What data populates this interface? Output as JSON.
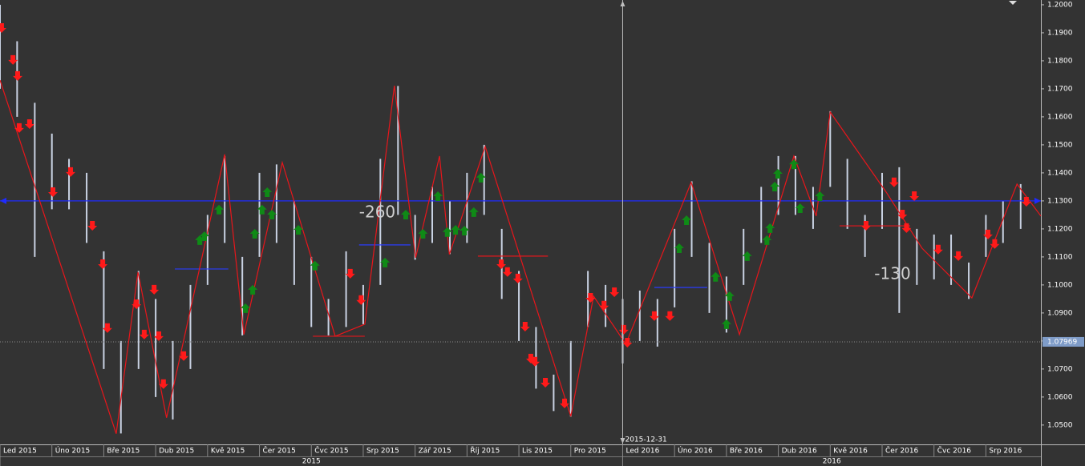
{
  "chart_data": {
    "type": "price",
    "xlim": [
      0,
      20.06
    ],
    "ylim": [
      1.0431,
      1.2017
    ],
    "xticks": [
      {
        "value": 0,
        "label": "Led 2015"
      },
      {
        "value": 1,
        "label": "Úno 2015"
      },
      {
        "value": 2,
        "label": "Bře 2015"
      },
      {
        "value": 3,
        "label": "Dub 2015"
      },
      {
        "value": 4,
        "label": "Kvě 2015"
      },
      {
        "value": 5,
        "label": "Čer 2015"
      },
      {
        "value": 6,
        "label": "Čvc 2015"
      },
      {
        "value": 7,
        "label": "Srp 2015"
      },
      {
        "value": 8,
        "label": "Zář 2015"
      },
      {
        "value": 9,
        "label": "Říj 2015"
      },
      {
        "value": 10,
        "label": "Lis 2015"
      },
      {
        "value": 11,
        "label": "Pro 2015"
      },
      {
        "value": 12,
        "label": "Led 2016"
      },
      {
        "value": 13,
        "label": "Úno 2016"
      },
      {
        "value": 14,
        "label": "Bře 2016"
      },
      {
        "value": 15,
        "label": "Dub 2016"
      },
      {
        "value": 16,
        "label": "Kvě 2016"
      },
      {
        "value": 17,
        "label": "Čer 2016"
      },
      {
        "value": 18,
        "label": "Čvc 2016"
      },
      {
        "value": 19,
        "label": "Srp 2016"
      }
    ],
    "year_ticks": [
      {
        "value": 0,
        "label": "2015"
      },
      {
        "value": 12,
        "label": "2016"
      }
    ],
    "yticks": [
      {
        "value": 1.05,
        "label": "1.0500"
      },
      {
        "value": 1.06,
        "label": "1.0600"
      },
      {
        "value": 1.07,
        "label": "1.0700"
      },
      {
        "value": 1.08,
        "label": "1.0800"
      },
      {
        "value": 1.09,
        "label": "1.0900"
      },
      {
        "value": 1.1,
        "label": "1.1000"
      },
      {
        "value": 1.11,
        "label": "1.1100"
      },
      {
        "value": 1.12,
        "label": "1.1200"
      },
      {
        "value": 1.13,
        "label": "1.1300"
      },
      {
        "value": 1.14,
        "label": "1.1400"
      },
      {
        "value": 1.15,
        "label": "1.1500"
      },
      {
        "value": 1.16,
        "label": "1.1600"
      },
      {
        "value": 1.17,
        "label": "1.1700"
      },
      {
        "value": 1.18,
        "label": "1.1800"
      },
      {
        "value": 1.19,
        "label": "1.1900"
      },
      {
        "value": 1.2,
        "label": "1.2000"
      }
    ],
    "bars": {
      "color": "#c9d2e3",
      "x": [
        0,
        0.33,
        0.67,
        1,
        1.33,
        1.67,
        2,
        2.33,
        2.67,
        3,
        3.33,
        3.67,
        4,
        4.33,
        4.67,
        5,
        5.33,
        5.67,
        6,
        6.33,
        6.67,
        7,
        7.33,
        7.67,
        8,
        8.33,
        8.67,
        9,
        9.33,
        9.67,
        10,
        10.33,
        10.67,
        11,
        11.33,
        11.67,
        12,
        12.33,
        12.67,
        13,
        13.33,
        13.67,
        14,
        14.33,
        14.67,
        15,
        15.33,
        15.67,
        16,
        16.33,
        16.67,
        17,
        17.33,
        17.67,
        18,
        18.33,
        18.67,
        19,
        19.33,
        19.67
      ],
      "high": [
        1.2,
        1.187,
        1.165,
        1.154,
        1.145,
        1.14,
        1.112,
        1.08,
        1.105,
        1.095,
        1.08,
        1.1,
        1.125,
        1.146,
        1.11,
        1.14,
        1.143,
        1.13,
        1.11,
        1.095,
        1.112,
        1.1,
        1.145,
        1.171,
        1.125,
        1.135,
        1.13,
        1.14,
        1.15,
        1.12,
        1.105,
        1.085,
        1.068,
        1.08,
        1.105,
        1.1,
        1.095,
        1.098,
        1.095,
        1.12,
        1.137,
        1.115,
        1.103,
        1.12,
        1.135,
        1.146,
        1.146,
        1.135,
        1.162,
        1.145,
        1.125,
        1.14,
        1.142,
        1.12,
        1.118,
        1.118,
        1.108,
        1.125,
        1.13,
        1.136
      ],
      "low": [
        1.17,
        1.16,
        1.11,
        1.127,
        1.127,
        1.115,
        1.07,
        1.047,
        1.07,
        1.06,
        1.052,
        1.07,
        1.1,
        1.115,
        1.082,
        1.11,
        1.115,
        1.1,
        1.085,
        1.082,
        1.085,
        1.086,
        1.1,
        1.125,
        1.109,
        1.115,
        1.111,
        1.115,
        1.125,
        1.095,
        1.08,
        1.063,
        1.055,
        1.053,
        1.085,
        1.085,
        1.072,
        1.08,
        1.078,
        1.092,
        1.11,
        1.09,
        1.083,
        1.1,
        1.115,
        1.125,
        1.125,
        1.12,
        1.135,
        1.12,
        1.11,
        1.12,
        1.09,
        1.1,
        1.102,
        1.1,
        1.095,
        1.11,
        1.115,
        1.12
      ]
    },
    "zigzag": {
      "color": "#e8161b",
      "x": [
        0,
        2.24,
        2.66,
        3.21,
        4.33,
        4.7,
        5.44,
        6.46,
        7.03,
        7.6,
        8.01,
        8.47,
        8.66,
        9.35,
        11.0,
        11.44,
        12.06,
        13.32,
        14.25,
        15.3,
        15.73,
        16.0,
        17.08,
        17.77,
        18.73,
        19.6,
        20.06
      ],
      "y": [
        1.1731,
        1.0469,
        1.1046,
        1.0526,
        1.1466,
        1.0823,
        1.1437,
        1.0817,
        1.086,
        1.1711,
        1.1097,
        1.146,
        1.1109,
        1.1494,
        1.0531,
        1.096,
        1.0789,
        1.1366,
        1.0823,
        1.146,
        1.1246,
        1.1617,
        1.1331,
        1.1131,
        1.0954,
        1.136,
        1.1246
      ]
    },
    "sell_signals": {
      "color": "#ff1a1a",
      "x": [
        0.03,
        0.25,
        0.34,
        0.37,
        0.57,
        1.02,
        1.36,
        1.78,
        1.98,
        2.07,
        2.63,
        2.78,
        2.97,
        3.06,
        3.15,
        3.54,
        6.75,
        6.96,
        9.66,
        9.78,
        9.98,
        10.12,
        10.23,
        10.31,
        10.51,
        10.88,
        11.38,
        11.64,
        11.84,
        12.02,
        12.09,
        12.61,
        12.91,
        16.69,
        17.23,
        17.39,
        17.47,
        17.62,
        18.08,
        18.47,
        19.04,
        19.17,
        19.78
      ],
      "y": [
        1.1917,
        1.1803,
        1.1746,
        1.156,
        1.1574,
        1.1331,
        1.1403,
        1.1211,
        1.1074,
        1.0846,
        1.0931,
        1.0823,
        1.0983,
        1.0817,
        1.0646,
        1.0746,
        1.104,
        1.0946,
        1.1074,
        1.1046,
        1.1023,
        1.0851,
        1.0737,
        1.0726,
        1.0651,
        1.0577,
        1.0954,
        1.0926,
        1.0974,
        1.084,
        1.0794,
        1.0889,
        1.0889,
        1.1211,
        1.1366,
        1.1251,
        1.1203,
        1.1317,
        1.1126,
        1.1103,
        1.118,
        1.1146,
        1.1297
      ]
    },
    "buy_signals": {
      "color": "#0f8a16",
      "x": [
        3.85,
        3.94,
        4.22,
        4.73,
        4.87,
        4.91,
        5.05,
        5.15,
        5.24,
        5.75,
        6.07,
        7.42,
        7.82,
        8.15,
        8.44,
        8.62,
        8.78,
        8.95,
        9.13,
        9.27,
        13.09,
        13.23,
        13.79,
        14.0,
        14.06,
        14.4,
        14.78,
        14.84,
        14.93,
        14.99,
        15.3,
        15.42,
        15.8
      ],
      "y": [
        1.116,
        1.1174,
        1.1269,
        1.0917,
        1.0983,
        1.1183,
        1.1269,
        1.1331,
        1.1251,
        1.1197,
        1.1069,
        1.108,
        1.1251,
        1.1183,
        1.1317,
        1.1189,
        1.1197,
        1.1194,
        1.126,
        1.1383,
        1.1131,
        1.1231,
        1.1029,
        1.086,
        1.096,
        1.1103,
        1.116,
        1.1203,
        1.1351,
        1.1397,
        1.1431,
        1.1274,
        1.1317
      ]
    },
    "levels": [
      {
        "x": [
          3.37,
          4.4
        ],
        "value": 1.1057,
        "color": "#2a3cff"
      },
      {
        "x": [
          6.92,
          7.91
        ],
        "value": 1.1143,
        "color": "#2a3cff"
      },
      {
        "x": [
          12.61,
          13.63
        ],
        "value": 1.0991,
        "color": "#2a3cff"
      },
      {
        "x": [
          6.03,
          7.03
        ],
        "value": 1.0817,
        "color": "#e8161b"
      },
      {
        "x": [
          9.21,
          10.56
        ],
        "value": 1.1103,
        "color": "#e8161b"
      },
      {
        "x": [
          16.18,
          17.54
        ],
        "value": 1.1211,
        "color": "#e8161b"
      }
    ],
    "hline": {
      "value": 1.13,
      "color": "#1f2bff"
    },
    "current_price": {
      "value": 1.07969,
      "color": "#7f9cc8"
    },
    "cursor": {
      "x": 12,
      "label": "2015-12-31"
    },
    "annotations": [
      {
        "text": "-260",
        "x": 6.92,
        "y": 1.1257
      },
      {
        "text": "-130",
        "x": 16.85,
        "y": 1.1037
      }
    ]
  }
}
